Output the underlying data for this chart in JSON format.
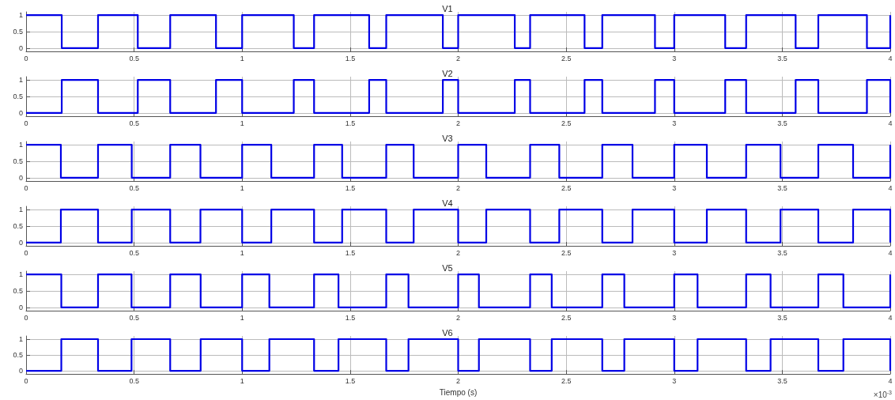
{
  "chart_data": [
    {
      "type": "step",
      "title": "V1",
      "x": [
        0,
        0.165,
        0.333,
        0.517,
        0.667,
        0.879,
        1.0,
        1.239,
        1.333,
        1.588,
        1.667,
        1.929,
        2.0,
        2.262,
        2.333,
        2.585,
        2.667,
        2.911,
        3.0,
        3.236,
        3.333,
        3.562,
        3.667,
        3.892,
        4
      ],
      "series": [
        {
          "color": "#0000e6",
          "values": [
            1,
            0,
            1,
            0,
            1,
            0,
            1,
            0,
            1,
            0,
            1,
            0,
            1,
            0,
            1,
            0,
            1,
            0,
            1,
            0,
            1,
            0,
            1,
            0,
            1
          ]
        }
      ],
      "xlim": [
        0,
        4
      ],
      "xticks": [
        0,
        0.5,
        1,
        1.5,
        2,
        2.5,
        3,
        3.5,
        4
      ],
      "ylim": [
        -0.1,
        1.1
      ],
      "yticks": [
        0,
        0.5,
        1
      ],
      "grid": true
    },
    {
      "type": "step",
      "title": "V2",
      "x": [
        0,
        0.165,
        0.333,
        0.517,
        0.667,
        0.879,
        1.0,
        1.239,
        1.333,
        1.588,
        1.667,
        1.929,
        2.0,
        2.262,
        2.333,
        2.585,
        2.667,
        2.911,
        3.0,
        3.236,
        3.333,
        3.562,
        3.667,
        3.892,
        4
      ],
      "series": [
        {
          "color": "#0000e6",
          "values": [
            0,
            1,
            0,
            1,
            0,
            1,
            0,
            1,
            0,
            1,
            0,
            1,
            0,
            1,
            0,
            1,
            0,
            1,
            0,
            1,
            0,
            1,
            0,
            1,
            0
          ]
        }
      ],
      "xlim": [
        0,
        4
      ],
      "xticks": [
        0,
        0.5,
        1,
        1.5,
        2,
        2.5,
        3,
        3.5,
        4
      ],
      "ylim": [
        -0.1,
        1.1
      ],
      "yticks": [
        0,
        0.5,
        1
      ],
      "grid": true
    },
    {
      "type": "step",
      "title": "V3",
      "x": [
        0,
        0.161,
        0.333,
        0.489,
        0.667,
        0.807,
        1.0,
        1.135,
        1.333,
        1.463,
        1.667,
        1.794,
        2.0,
        2.13,
        2.333,
        2.468,
        2.667,
        2.807,
        3.0,
        3.151,
        3.333,
        3.492,
        3.667,
        3.828,
        4
      ],
      "series": [
        {
          "color": "#0000e6",
          "values": [
            1,
            0,
            1,
            0,
            1,
            0,
            1,
            0,
            1,
            0,
            1,
            0,
            1,
            0,
            1,
            0,
            1,
            0,
            1,
            0,
            1,
            0,
            1,
            0,
            1
          ]
        }
      ],
      "xlim": [
        0,
        4
      ],
      "xticks": [
        0,
        0.5,
        1,
        1.5,
        2,
        2.5,
        3,
        3.5,
        4
      ],
      "ylim": [
        -0.1,
        1.1
      ],
      "yticks": [
        0,
        0.5,
        1
      ],
      "grid": true
    },
    {
      "type": "step",
      "title": "V4",
      "x": [
        0,
        0.161,
        0.333,
        0.489,
        0.667,
        0.807,
        1.0,
        1.135,
        1.333,
        1.463,
        1.667,
        1.794,
        2.0,
        2.13,
        2.333,
        2.468,
        2.667,
        2.807,
        3.0,
        3.151,
        3.333,
        3.492,
        3.667,
        3.828,
        4
      ],
      "series": [
        {
          "color": "#0000e6",
          "values": [
            0,
            1,
            0,
            1,
            0,
            1,
            0,
            1,
            0,
            1,
            0,
            1,
            0,
            1,
            0,
            1,
            0,
            1,
            0,
            1,
            0,
            1,
            0,
            1,
            0
          ]
        }
      ],
      "xlim": [
        0,
        4
      ],
      "xticks": [
        0,
        0.5,
        1,
        1.5,
        2,
        2.5,
        3,
        3.5,
        4
      ],
      "ylim": [
        -0.1,
        1.1
      ],
      "yticks": [
        0,
        0.5,
        1
      ],
      "grid": true
    },
    {
      "type": "step",
      "title": "V5",
      "x": [
        0,
        0.163,
        0.333,
        0.488,
        0.667,
        0.808,
        1.0,
        1.126,
        1.333,
        1.446,
        1.667,
        1.77,
        2.0,
        2.096,
        2.333,
        2.433,
        2.667,
        2.769,
        3.0,
        3.108,
        3.333,
        3.446,
        3.667,
        3.783,
        4
      ],
      "series": [
        {
          "color": "#0000e6",
          "values": [
            1,
            0,
            1,
            0,
            1,
            0,
            1,
            0,
            1,
            0,
            1,
            0,
            1,
            0,
            1,
            0,
            1,
            0,
            1,
            0,
            1,
            0,
            1,
            0,
            1
          ]
        }
      ],
      "xlim": [
        0,
        4
      ],
      "xticks": [
        0,
        0.5,
        1,
        1.5,
        2,
        2.5,
        3,
        3.5,
        4
      ],
      "ylim": [
        -0.1,
        1.1
      ],
      "yticks": [
        0,
        0.5,
        1
      ],
      "grid": true
    },
    {
      "type": "step",
      "title": "V6",
      "xlabel": "Tiempo (s)",
      "annotations": [
        "×10$^{-3}$"
      ],
      "x": [
        0,
        0.163,
        0.333,
        0.488,
        0.667,
        0.808,
        1.0,
        1.126,
        1.333,
        1.446,
        1.667,
        1.77,
        2.0,
        2.096,
        2.333,
        2.433,
        2.667,
        2.769,
        3.0,
        3.108,
        3.333,
        3.446,
        3.667,
        3.783,
        4
      ],
      "series": [
        {
          "color": "#0000e6",
          "values": [
            0,
            1,
            0,
            1,
            0,
            1,
            0,
            1,
            0,
            1,
            0,
            1,
            0,
            1,
            0,
            1,
            0,
            1,
            0,
            1,
            0,
            1,
            0,
            1,
            0
          ]
        }
      ],
      "xlim": [
        0,
        4
      ],
      "xticks": [
        0,
        0.5,
        1,
        1.5,
        2,
        2.5,
        3,
        3.5,
        4
      ],
      "ylim": [
        -0.1,
        1.1
      ],
      "yticks": [
        0,
        0.5,
        1
      ],
      "grid": true
    }
  ]
}
